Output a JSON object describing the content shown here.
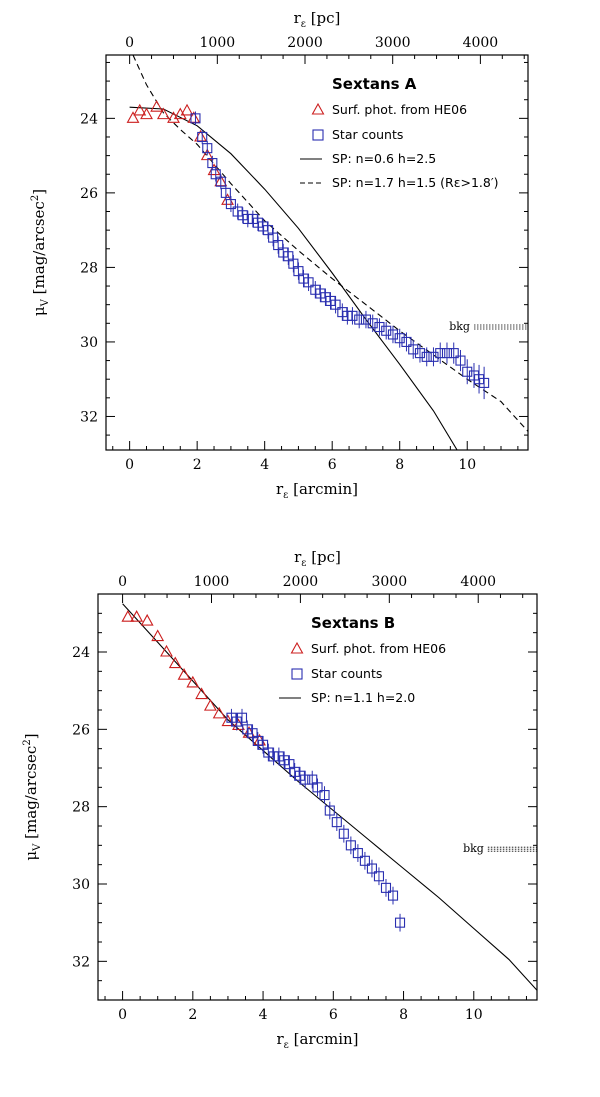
{
  "chart_data": [
    {
      "type": "line",
      "title": "Sextans A",
      "xlabel": "r_ε [arcmin]",
      "ylabel": "μ_V [mag/arcsec²]",
      "top_xlabel": "r_ε [pc]",
      "xlim": [
        -0.7,
        11.8
      ],
      "ylim": [
        32.9,
        22.3
      ],
      "x_ticks": [
        0,
        2,
        4,
        6,
        8,
        10
      ],
      "y_ticks": [
        24,
        26,
        28,
        30,
        32
      ],
      "top_ticks": [
        0,
        1000,
        2000,
        3000,
        4000
      ],
      "pc_per_arcmin": 385,
      "legend": {
        "surf": "Surf. phot. from HE06",
        "stars": "Star counts",
        "sp1": "SP: n=0.6  h=2.5",
        "sp2": "SP: n=1.7  h=1.5  (Rε>1.8′)"
      },
      "bkg": {
        "label": "bkg",
        "value": 29.6,
        "x_range": [
          10.2,
          11.8
        ]
      },
      "surface_photometry": {
        "x": [
          0.1,
          0.3,
          0.5,
          0.8,
          1.0,
          1.3,
          1.5,
          1.7,
          1.9,
          2.1,
          2.3,
          2.5,
          2.7,
          2.9
        ],
        "y": [
          24.0,
          23.8,
          23.9,
          23.7,
          23.9,
          24.0,
          23.9,
          23.8,
          24.0,
          24.5,
          25.0,
          25.4,
          25.7,
          26.2
        ]
      },
      "star_counts": {
        "x": [
          1.95,
          2.15,
          2.3,
          2.45,
          2.55,
          2.7,
          2.85,
          3.0,
          3.2,
          3.35,
          3.5,
          3.65,
          3.8,
          3.95,
          4.1,
          4.25,
          4.4,
          4.55,
          4.7,
          4.85,
          5.0,
          5.15,
          5.3,
          5.5,
          5.65,
          5.8,
          5.95,
          6.1,
          6.3,
          6.45,
          6.6,
          6.8,
          7.0,
          7.2,
          7.4,
          7.6,
          7.8,
          8.0,
          8.2,
          8.4,
          8.6,
          8.8,
          9.0,
          9.2,
          9.4,
          9.6,
          9.8,
          10.0,
          10.2,
          10.35,
          10.5
        ],
        "y": [
          24.0,
          24.5,
          24.8,
          25.2,
          25.5,
          25.7,
          26.0,
          26.3,
          26.5,
          26.6,
          26.7,
          26.7,
          26.8,
          26.9,
          27.0,
          27.2,
          27.4,
          27.6,
          27.7,
          27.9,
          28.1,
          28.3,
          28.4,
          28.6,
          28.7,
          28.8,
          28.9,
          29.0,
          29.2,
          29.3,
          29.3,
          29.4,
          29.4,
          29.5,
          29.6,
          29.7,
          29.8,
          29.9,
          30.0,
          30.2,
          30.3,
          30.4,
          30.4,
          30.3,
          30.3,
          30.3,
          30.5,
          30.8,
          30.9,
          31.0,
          31.1
        ],
        "err": [
          0.05,
          0.06,
          0.06,
          0.06,
          0.06,
          0.07,
          0.07,
          0.08,
          0.08,
          0.08,
          0.09,
          0.09,
          0.09,
          0.09,
          0.1,
          0.1,
          0.1,
          0.1,
          0.1,
          0.1,
          0.1,
          0.1,
          0.1,
          0.1,
          0.1,
          0.1,
          0.1,
          0.1,
          0.1,
          0.1,
          0.1,
          0.1,
          0.1,
          0.1,
          0.1,
          0.1,
          0.1,
          0.12,
          0.12,
          0.12,
          0.12,
          0.12,
          0.12,
          0.15,
          0.15,
          0.15,
          0.15,
          0.2,
          0.2,
          0.25,
          0.3
        ]
      },
      "sp1_model": {
        "x": [
          0,
          1,
          2,
          3,
          4,
          5,
          6,
          7,
          8,
          9,
          9.7
        ],
        "y": [
          23.7,
          23.75,
          24.2,
          24.95,
          25.9,
          26.95,
          28.15,
          29.4,
          30.6,
          31.85,
          32.9
        ]
      },
      "sp2_model": {
        "x": [
          0.1,
          0.5,
          1,
          1.5,
          2,
          3,
          4,
          5,
          6,
          7,
          8,
          9,
          10,
          11,
          11.8
        ],
        "y": [
          22.3,
          23.1,
          23.85,
          24.3,
          24.7,
          25.75,
          26.75,
          27.55,
          28.3,
          29.0,
          29.7,
          30.35,
          31.0,
          31.6,
          32.4
        ]
      }
    },
    {
      "type": "line",
      "title": "Sextans B",
      "xlabel": "r_ε [arcmin]",
      "ylabel": "μ_V [mag/arcsec²]",
      "top_xlabel": "r_ε [pc]",
      "xlim": [
        -0.7,
        11.8
      ],
      "ylim": [
        33.0,
        22.5
      ],
      "x_ticks": [
        0,
        2,
        4,
        6,
        8,
        10
      ],
      "y_ticks": [
        24,
        26,
        28,
        30,
        32
      ],
      "top_ticks": [
        0,
        1000,
        2000,
        3000,
        4000
      ],
      "pc_per_arcmin": 395,
      "legend": {
        "surf": "Surf. phot. from HE06",
        "stars": "Star counts",
        "sp1": "SP: n=1.1  h=2.0"
      },
      "bkg": {
        "label": "bkg",
        "value": 29.1,
        "x_range": [
          10.4,
          11.8
        ]
      },
      "surface_photometry": {
        "x": [
          0.15,
          0.4,
          0.7,
          1.0,
          1.25,
          1.5,
          1.75,
          2.0,
          2.25,
          2.5,
          2.75,
          3.0,
          3.3,
          3.6,
          3.9
        ],
        "y": [
          23.1,
          23.1,
          23.2,
          23.6,
          24.0,
          24.3,
          24.6,
          24.8,
          25.1,
          25.4,
          25.6,
          25.8,
          25.9,
          26.1,
          26.3
        ]
      },
      "star_counts": {
        "x": [
          3.1,
          3.25,
          3.4,
          3.55,
          3.7,
          3.85,
          4.0,
          4.15,
          4.3,
          4.45,
          4.6,
          4.75,
          4.9,
          5.05,
          5.2,
          5.4,
          5.55,
          5.75,
          5.9,
          6.1,
          6.3,
          6.5,
          6.7,
          6.9,
          7.1,
          7.3,
          7.5,
          7.7,
          7.9
        ],
        "y": [
          25.7,
          25.8,
          25.7,
          26.0,
          26.1,
          26.3,
          26.4,
          26.6,
          26.7,
          26.7,
          26.8,
          26.9,
          27.1,
          27.2,
          27.3,
          27.3,
          27.5,
          27.7,
          28.1,
          28.4,
          28.7,
          29.0,
          29.2,
          29.4,
          29.6,
          29.8,
          30.1,
          30.3,
          31.0
        ]
      },
      "sp1_model": {
        "x": [
          0,
          1,
          2,
          3,
          4,
          5,
          6,
          7,
          8,
          9,
          10,
          11,
          11.8
        ],
        "y": [
          22.75,
          23.75,
          24.75,
          25.75,
          26.55,
          27.35,
          28.1,
          28.85,
          29.6,
          30.35,
          31.15,
          31.95,
          32.75
        ]
      }
    }
  ]
}
